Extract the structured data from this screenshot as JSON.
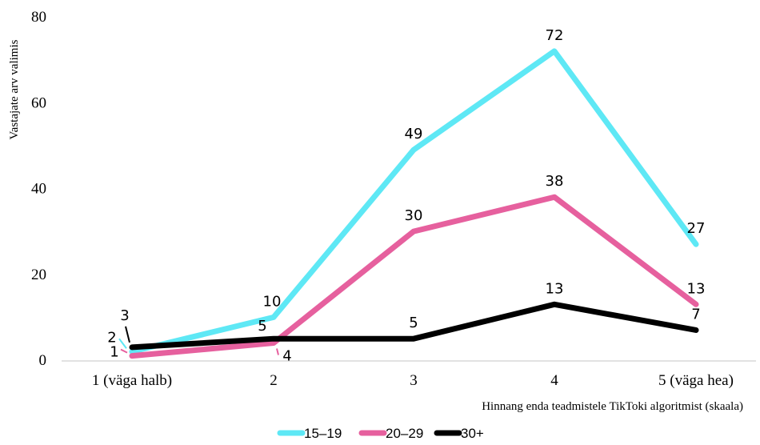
{
  "chart_data": {
    "type": "line",
    "categories": [
      "1 (väga halb)",
      "2",
      "3",
      "4",
      "5 (väga hea)"
    ],
    "ylim": [
      0,
      80
    ],
    "yticks": [
      "0",
      "20",
      "40",
      "60",
      "80"
    ],
    "ylabel": "Vastajate arv valimis",
    "xlabel": "Hinnang enda teadmistele TikToki algoritmist (skaala)",
    "grid": false,
    "legend_position": "bottom",
    "series": [
      {
        "name": "15–19",
        "color": "#5ee8f5",
        "values": [
          2,
          10,
          49,
          72,
          27
        ]
      },
      {
        "name": "20–29",
        "color": "#e6609e",
        "values": [
          1,
          4,
          30,
          38,
          13
        ]
      },
      {
        "name": "30+",
        "color": "#000000",
        "values": [
          3,
          5,
          5,
          13,
          7
        ]
      }
    ]
  }
}
